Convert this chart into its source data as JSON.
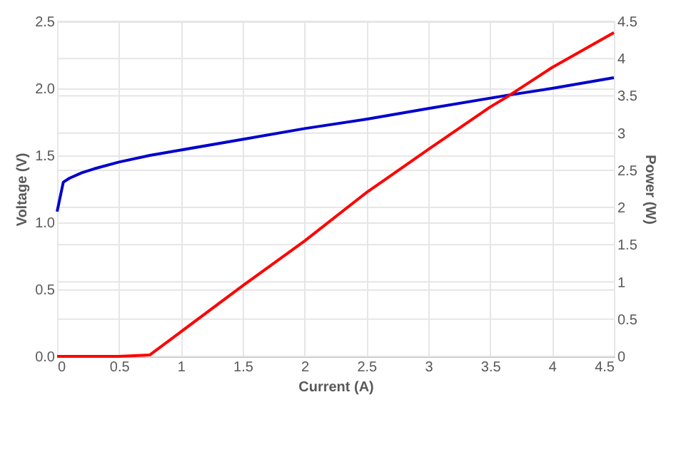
{
  "chart_data": {
    "type": "line",
    "xlabel": "Current (A)",
    "ylabel": "Voltage (V)",
    "y2label": "Power (W)",
    "xlim": [
      0,
      4.5
    ],
    "xticks": [
      0,
      0.5,
      1,
      1.5,
      2,
      2.5,
      3,
      3.5,
      4,
      4.5
    ],
    "ylim": [
      0,
      2.5
    ],
    "yticks": [
      {
        "value": 0,
        "label": "0.0"
      },
      {
        "value": 0.5,
        "label": "0.5"
      },
      {
        "value": 1,
        "label": "1.0"
      },
      {
        "value": 1.5,
        "label": "1.5"
      },
      {
        "value": 2,
        "label": "2.0"
      },
      {
        "value": 2.5,
        "label": "2.5"
      }
    ],
    "y2lim": [
      0,
      4.5
    ],
    "y2ticks": [
      0,
      0.5,
      1,
      1.5,
      2,
      2.5,
      3,
      3.5,
      4,
      4.5
    ],
    "grid": true,
    "marker": "none",
    "line_style": "solid",
    "series": [
      {
        "color": "#0000cc",
        "x": [
          0,
          0.05,
          0.1,
          0.2,
          0.3,
          0.5,
          0.75,
          1,
          1.5,
          2,
          2.5,
          3,
          3.65,
          4,
          4.5
        ],
        "values": [
          1.08,
          1.3,
          1.33,
          1.37,
          1.4,
          1.45,
          1.5,
          1.54,
          1.62,
          1.7,
          1.77,
          1.85,
          1.95,
          2.0,
          2.08
        ]
      },
      {
        "color": "#ff0000",
        "axis": "y2",
        "x": [
          0,
          0.5,
          0.75,
          1,
          1.5,
          2,
          2.5,
          3,
          3.5,
          3.65,
          4,
          4.5
        ],
        "values": [
          0,
          0,
          0.02,
          0.33,
          0.95,
          1.55,
          2.2,
          2.78,
          3.35,
          3.5,
          3.88,
          4.35
        ]
      }
    ]
  }
}
